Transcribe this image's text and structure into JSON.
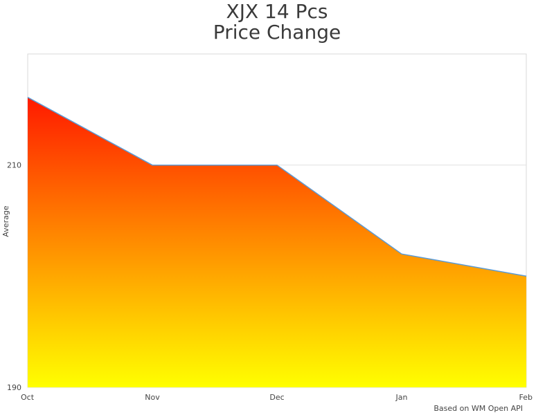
{
  "chart_data": {
    "type": "area",
    "title_lines": [
      "XJX 14 Pcs",
      "Price Change"
    ],
    "ylabel": "Average",
    "xlabel": "",
    "categories": [
      "Oct",
      "Nov",
      "Dec",
      "Jan",
      "Feb"
    ],
    "values": [
      216.1,
      210.0,
      210.0,
      202.0,
      200.0
    ],
    "ylim": [
      190,
      220
    ],
    "yticks": [
      190,
      210
    ],
    "grid": true,
    "fill_gradient": {
      "top": "#ff1a00",
      "bottom": "#ffff00"
    },
    "line_color": "#5b9bd5"
  },
  "footer": {
    "source": "Based on WM Open API"
  }
}
